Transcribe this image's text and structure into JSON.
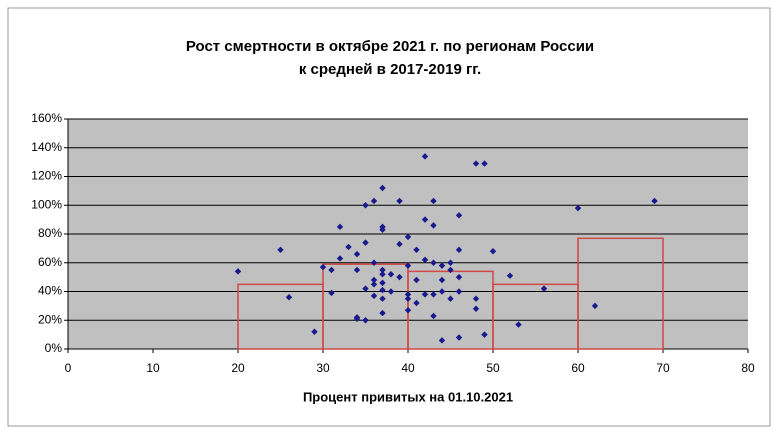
{
  "chart_data": {
    "type": "scatter",
    "title": [
      "Рост смертности в октябре 2021 г. по регионам России",
      "к средней в 2017-2019 гг."
    ],
    "x_label": "Процент привитых на 01.10.2021",
    "xlim": [
      0,
      80
    ],
    "xticks": [
      0,
      10,
      20,
      30,
      40,
      50,
      60,
      70,
      80
    ],
    "ylim": [
      0,
      160
    ],
    "yticks": [
      {
        "value": 0,
        "label": "0%"
      },
      {
        "value": 20,
        "label": "20%"
      },
      {
        "value": 40,
        "label": "40%"
      },
      {
        "value": 60,
        "label": "60%"
      },
      {
        "value": 80,
        "label": "80%"
      },
      {
        "value": 100,
        "label": "100%"
      },
      {
        "value": 120,
        "label": "120%"
      },
      {
        "value": 140,
        "label": "140%"
      },
      {
        "value": 160,
        "label": "160%"
      }
    ],
    "grid": true,
    "series": [
      {
        "type": "scatter",
        "color": "#1a1a8c",
        "x": [
          20,
          25,
          26,
          29,
          30,
          31,
          31,
          32,
          32,
          33,
          34,
          34,
          34,
          35,
          34,
          35,
          35,
          35,
          36,
          36,
          36,
          36,
          36,
          37,
          37,
          37,
          37,
          37,
          37,
          37,
          37,
          37,
          38,
          38,
          39,
          39,
          39,
          40,
          40,
          40,
          40,
          40,
          41,
          41,
          41,
          42,
          42,
          42,
          42,
          43,
          43,
          43,
          43,
          43,
          44,
          44,
          44,
          44,
          45,
          45,
          45,
          46,
          46,
          46,
          46,
          46,
          48,
          48,
          48,
          49,
          49,
          50,
          52,
          53,
          56,
          60,
          62,
          69
        ],
        "values": [
          54,
          69,
          36,
          12,
          57,
          39,
          55,
          85,
          63,
          71,
          55,
          22,
          21,
          20,
          66,
          100,
          74,
          42,
          103,
          60,
          48,
          37,
          45,
          112,
          85,
          83,
          55,
          52,
          46,
          41,
          35,
          25,
          40,
          52,
          103,
          73,
          50,
          78,
          58,
          38,
          27,
          35,
          69,
          48,
          32,
          134,
          90,
          62,
          38,
          103,
          86,
          60,
          38,
          23,
          58,
          48,
          40,
          6,
          55,
          60,
          35,
          93,
          69,
          50,
          40,
          8,
          129,
          35,
          28,
          129,
          10,
          68,
          51,
          17,
          42,
          98,
          30,
          103
        ]
      },
      {
        "type": "bar",
        "color": "#d04848",
        "bins": [
          20,
          30,
          40,
          50,
          60,
          70
        ],
        "values": [
          45,
          59,
          54,
          45,
          77
        ]
      }
    ]
  }
}
